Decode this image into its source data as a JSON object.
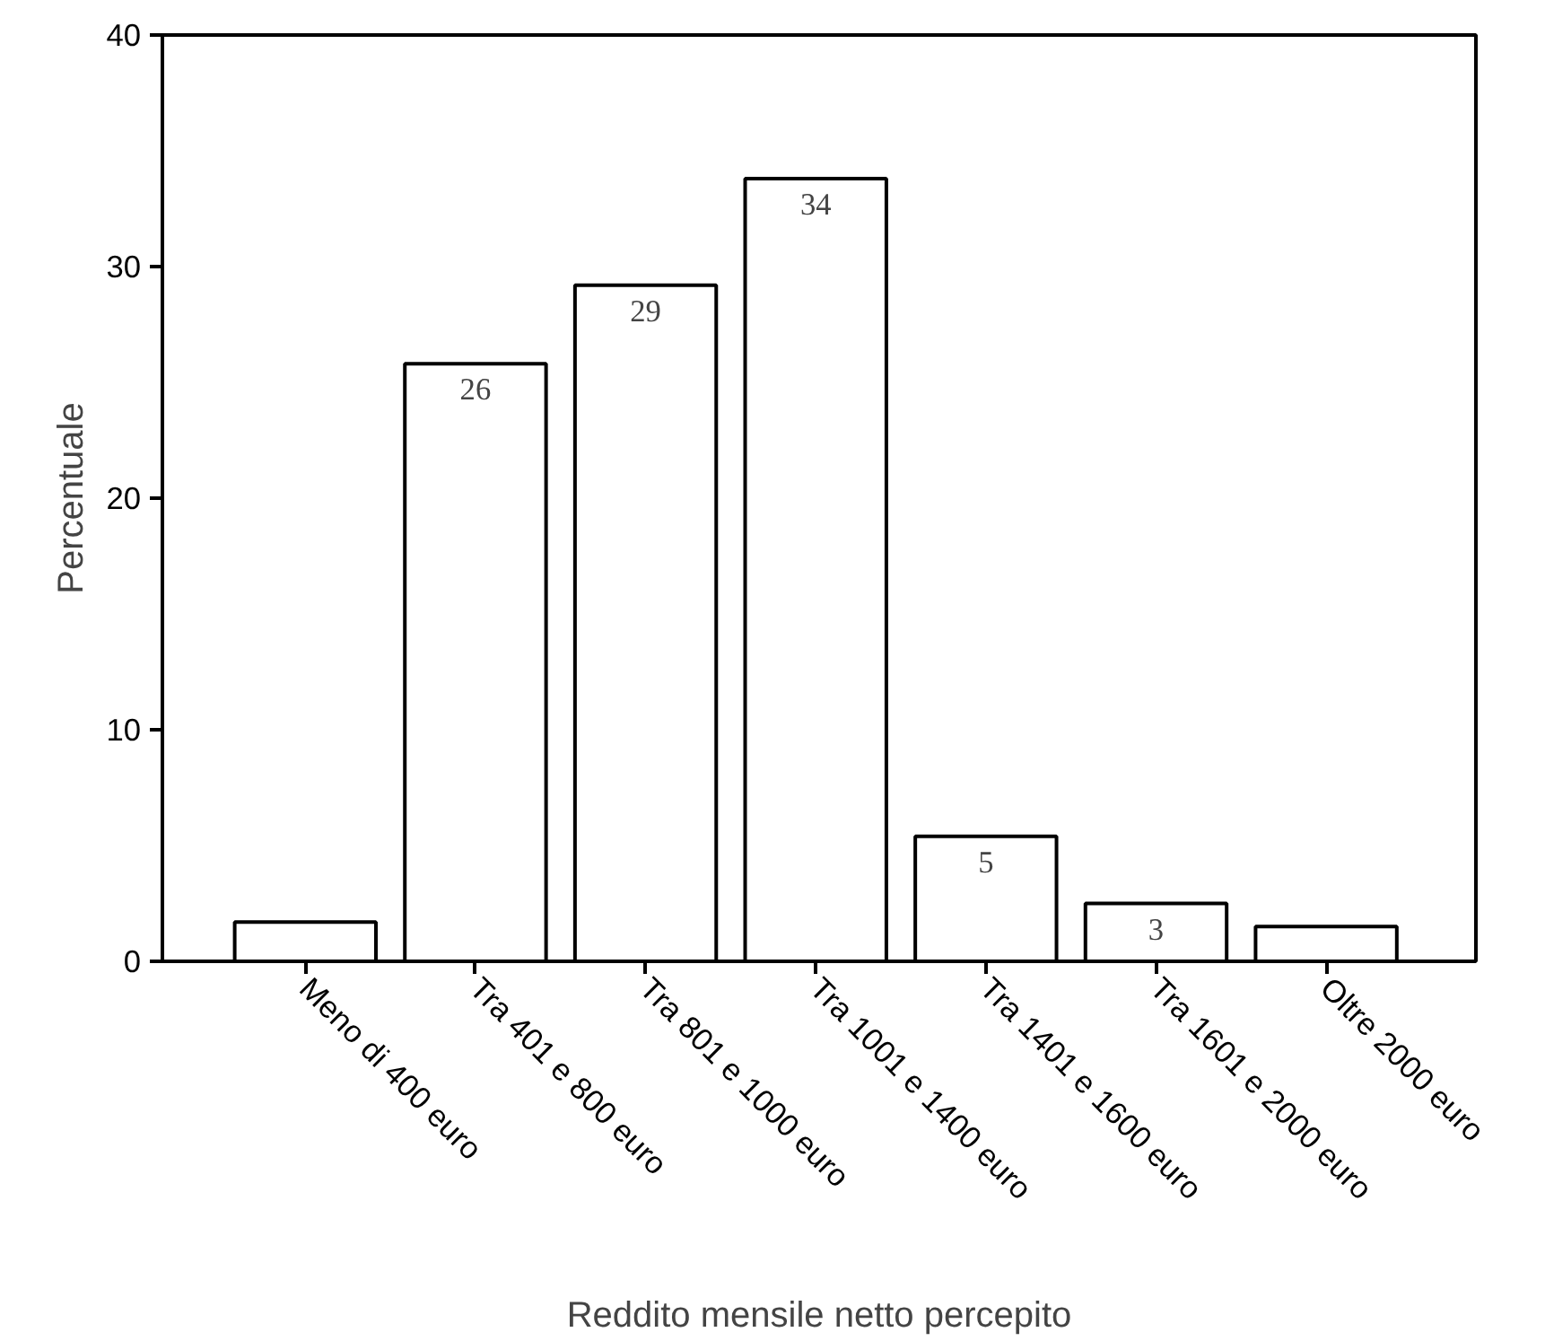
{
  "chart_data": {
    "type": "bar",
    "xlabel": "Reddito mensile netto percepito",
    "ylabel": "Percentuale",
    "categories": [
      "Meno di 400 euro",
      "Tra 401 e 800 euro",
      "Tra 801 e 1000 euro",
      "Tra 1001 e 1400 euro",
      "Tra 1401 e 1600 euro",
      "Tra 1601 e 2000 euro",
      "Oltre 2000 euro"
    ],
    "values": [
      1.7,
      25.8,
      29.2,
      33.8,
      5.4,
      2.5,
      1.5
    ],
    "value_labels": [
      null,
      "26",
      "29",
      "34",
      "5",
      "3",
      null
    ],
    "color": "#ffffff",
    "ylim": [
      0,
      40
    ],
    "yticks": [
      0,
      10,
      20,
      30,
      40
    ],
    "grid": false
  }
}
